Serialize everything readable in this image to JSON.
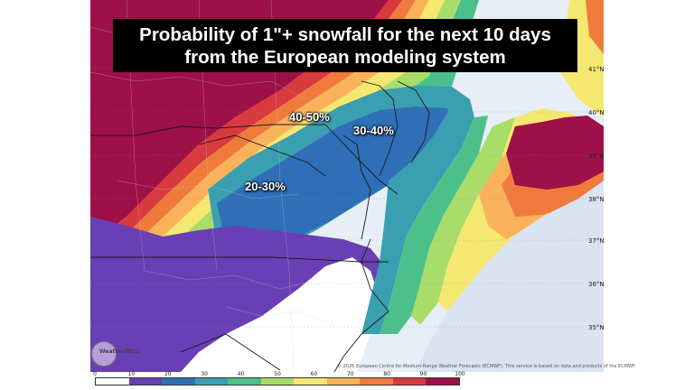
{
  "title": {
    "line1": "Probability of 1\"+ snowfall for the next 10 days",
    "line2": "from the European modeling system"
  },
  "annotations": {
    "label_40_50": "40-50%",
    "label_30_40": "30-40%",
    "label_20_30": "20-30%"
  },
  "latitude_labels": [
    "41°N",
    "40°N",
    "39°N",
    "38°N",
    "37°N",
    "36°N",
    "35°N"
  ],
  "credit": "© 2026 European Centre for Medium-Range Weather Forecasts (ECMWF). This service is based on data and products of the ECMWF.",
  "logo_text": "WeatherBELL",
  "colorbar": {
    "ticks": [
      "0",
      "10",
      "20",
      "30",
      "40",
      "50",
      "60",
      "70",
      "80",
      "90",
      "100"
    ],
    "colors": [
      "#ffffff",
      "#6a3fb5",
      "#2f6fb8",
      "#3a9fb0",
      "#4cc08a",
      "#a8dd6a",
      "#f5e870",
      "#f9b25a",
      "#f07a3c",
      "#d83a3e",
      "#9e1048"
    ]
  }
}
